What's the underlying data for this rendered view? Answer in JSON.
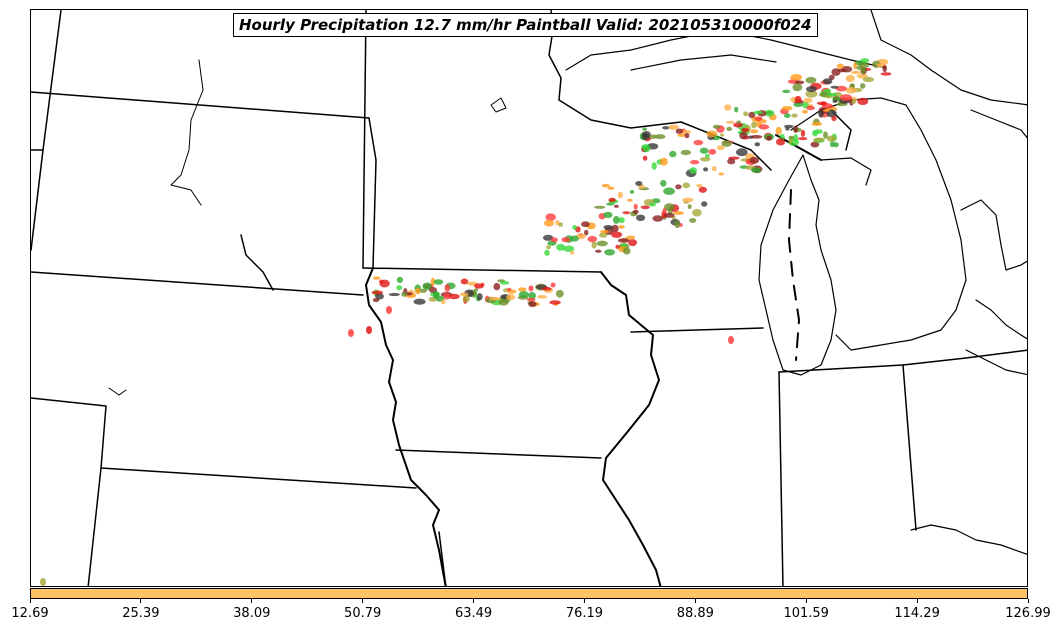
{
  "title": "Hourly Precipitation 12.7 mm/hr Paintball Valid: 202105310000f024",
  "colorbar": {
    "color": "#ffc266",
    "ticks": [
      "12.69",
      "25.39",
      "38.09",
      "50.79",
      "63.49",
      "76.19",
      "88.89",
      "101.59",
      "114.29",
      "126.99"
    ]
  },
  "member_colors": [
    "#ff3b3b",
    "#e01414",
    "#ff9a1a",
    "#ffb04a",
    "#38d838",
    "#2ea82e",
    "#a8a83a",
    "#8a2020",
    "#3a3a3a",
    "#6b8f2a"
  ]
}
